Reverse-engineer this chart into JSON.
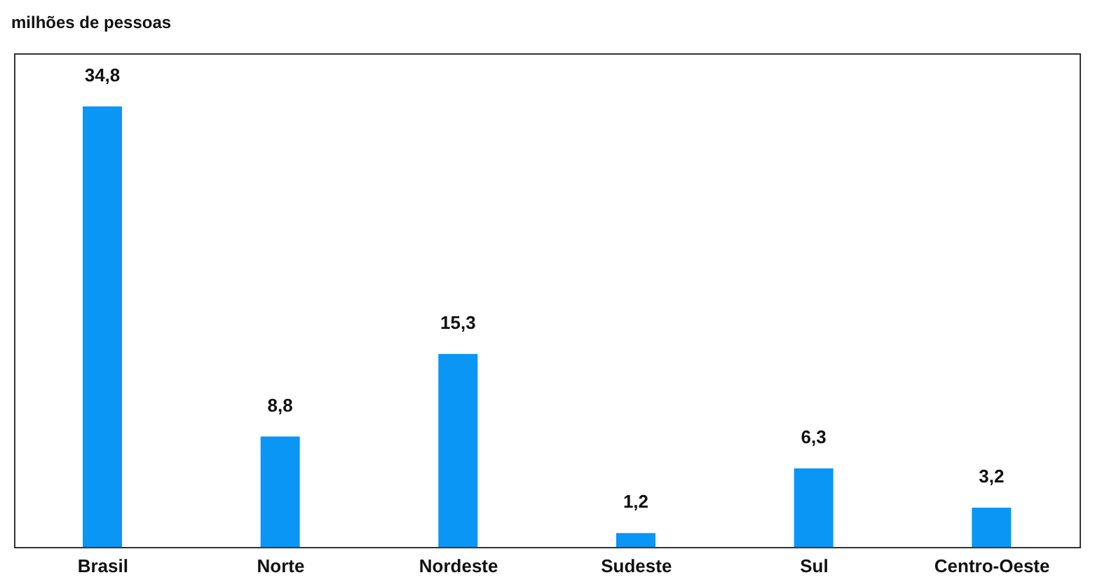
{
  "chart_data": {
    "type": "bar",
    "ylabel": "milhões de pessoas",
    "categories": [
      "Brasil",
      "Norte",
      "Nordeste",
      "Sudeste",
      "Sul",
      "Centro-Oeste"
    ],
    "values": [
      34.8,
      8.8,
      15.3,
      1.2,
      6.3,
      3.2
    ],
    "value_labels": [
      "34,8",
      "8,8",
      "15,3",
      "1,2",
      "6,3",
      "3,2"
    ],
    "color": "#0a96f5",
    "grid": false
  }
}
